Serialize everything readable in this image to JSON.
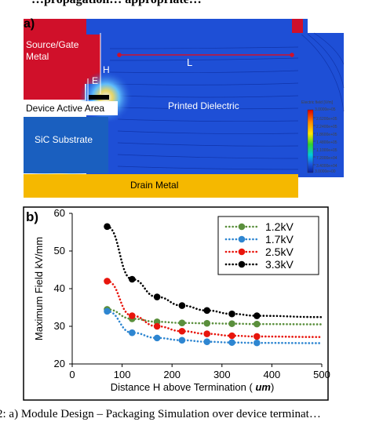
{
  "header_fragment": "…propagation… appropriate…",
  "caption_fragment": "2: a) Module Design – Packaging Simulation over device terminat…",
  "panel_a": {
    "label": "a)",
    "source_gate_metal": "Source/Gate\nMetal",
    "printed_dielectric": "Printed Dielectric",
    "device_active_area": "Device Active Area",
    "sic_substrate": "SiC Substrate",
    "drain_metal": "Drain Metal",
    "dim_h": "H",
    "dim_l": "L",
    "dim_e": "E",
    "colorbar_title": "Electric field [V/m]",
    "colorbar_max": "3.0000e+05",
    "colorbar_min": "3.0000e+00",
    "colorbar_ticks": [
      "2.6200e+05",
      "2.2400e+05",
      "1.8600e+05",
      "1.4800e+05",
      "1.1000e+05",
      "7.2000e+04",
      "3.4000e+04"
    ],
    "colors": {
      "metal": "#d0102a",
      "dielectric": "#1e4fd6",
      "substrate": "#1a5fbf",
      "drain": "#f5b800"
    }
  },
  "chart_data": {
    "type": "scatter",
    "panel_label": "b)",
    "xlabel": "Distance H above Termination (",
    "xlabel_unit": "um",
    "xlabel_close": ")",
    "ylabel": "Maximum Field kV/mm",
    "xlim": [
      0,
      500
    ],
    "ylim": [
      20,
      60
    ],
    "xticks": [
      0,
      100,
      200,
      300,
      400,
      500
    ],
    "yticks": [
      20,
      30,
      40,
      50,
      60
    ],
    "legend_position": "top-right",
    "series": [
      {
        "name": "1.2kV",
        "color": "#5a8f3c",
        "x": [
          70,
          120,
          170,
          220,
          270,
          320,
          370
        ],
        "y": [
          34.5,
          32.0,
          31.2,
          30.9,
          30.8,
          30.7,
          30.6
        ]
      },
      {
        "name": "1.7kV",
        "color": "#2e86d1",
        "x": [
          70,
          120,
          170,
          220,
          270,
          320,
          370
        ],
        "y": [
          34.0,
          28.3,
          26.9,
          26.3,
          25.9,
          25.7,
          25.6
        ]
      },
      {
        "name": "2.5kV",
        "color": "#e8150c",
        "x": [
          70,
          120,
          170,
          220,
          270,
          320,
          370
        ],
        "y": [
          42.0,
          32.8,
          30.0,
          28.7,
          28.0,
          27.5,
          27.3
        ]
      },
      {
        "name": "3.3kV",
        "color": "#000000",
        "x": [
          70,
          120,
          170,
          220,
          270,
          320,
          370
        ],
        "y": [
          56.5,
          42.5,
          37.8,
          35.5,
          34.2,
          33.3,
          32.8
        ]
      }
    ]
  }
}
